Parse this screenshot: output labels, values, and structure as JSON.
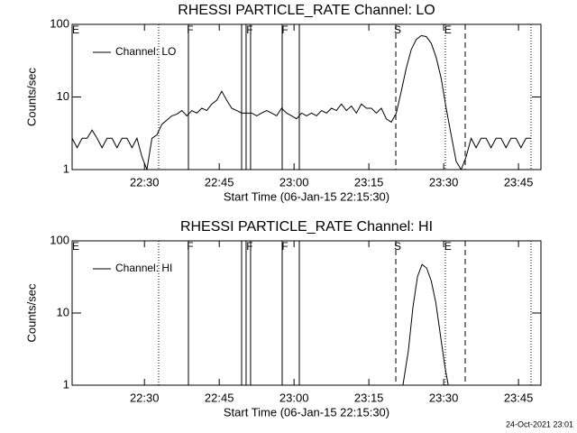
{
  "chart_data": [
    {
      "type": "line",
      "title": "RHESSI PARTICLE_RATE Channel: LO",
      "xlabel": "Start Time (06-Jan-15 22:15:30)",
      "ylabel": "Counts/sec",
      "log_y": true,
      "legend": "upper left",
      "xlim": [
        0,
        5640
      ],
      "xticks": [
        {
          "value": 870,
          "label": "22:30"
        },
        {
          "value": 1770,
          "label": "22:45"
        },
        {
          "value": 2670,
          "label": "23:00"
        },
        {
          "value": 3570,
          "label": "23:15"
        },
        {
          "value": 4470,
          "label": "23:30"
        },
        {
          "value": 5370,
          "label": "23:45"
        }
      ],
      "ylim": [
        1,
        100
      ],
      "yticks": [
        1,
        10,
        100
      ],
      "x": [
        0,
        60,
        120,
        180,
        240,
        300,
        360,
        420,
        480,
        540,
        600,
        660,
        720,
        780,
        840,
        900,
        960,
        1020,
        1080,
        1140,
        1200,
        1260,
        1320,
        1380,
        1440,
        1500,
        1560,
        1620,
        1680,
        1740,
        1800,
        1860,
        1920,
        1980,
        2040,
        2100,
        2160,
        2220,
        2280,
        2340,
        2400,
        2460,
        2520,
        2580,
        2640,
        2700,
        2760,
        2820,
        2880,
        2940,
        3000,
        3060,
        3120,
        3180,
        3240,
        3300,
        3360,
        3420,
        3480,
        3540,
        3600,
        3660,
        3720,
        3780,
        3840,
        3900,
        3960,
        4020,
        4080,
        4140,
        4200,
        4260,
        4320,
        4380,
        4440,
        4500,
        4560,
        4620,
        4680,
        4740,
        4800,
        4860,
        4920,
        4980,
        5040,
        5100,
        5160,
        5220,
        5280,
        5340,
        5400,
        5460,
        5520
      ],
      "series": [
        {
          "name": "Channel: LO",
          "color": "#000000",
          "values": [
            2.7,
            2,
            2.7,
            2.7,
            3.5,
            2.7,
            2,
            2.7,
            2.7,
            2,
            2.7,
            2.7,
            2,
            2.7,
            1.5,
            1,
            2.7,
            3,
            4.2,
            4.8,
            5.5,
            5.8,
            6.5,
            5.5,
            6.5,
            6,
            7,
            6.5,
            8,
            9,
            12,
            9,
            7,
            6.5,
            6,
            6,
            6,
            5.5,
            6,
            6.5,
            6,
            5.5,
            7,
            6,
            5.5,
            5,
            6,
            5.5,
            6,
            5.5,
            6.5,
            6,
            7,
            6.5,
            8,
            6.5,
            7.5,
            6,
            8,
            7,
            7,
            6,
            7,
            5,
            4.5,
            6,
            12,
            25,
            45,
            62,
            70,
            68,
            55,
            35,
            18,
            7,
            3,
            1.3,
            1,
            1.5,
            2.7,
            2,
            2.7,
            2.7,
            2,
            2.7,
            2.7,
            2,
            2.7,
            2.7,
            2,
            2.7,
            2.7
          ]
        }
      ],
      "markers": [
        {
          "x": 1041,
          "style": "dotted"
        },
        {
          "x": 1399,
          "style": "solid"
        },
        {
          "x": 2039,
          "style": "solid"
        },
        {
          "x": 2093,
          "style": "solid"
        },
        {
          "x": 2147,
          "style": "solid"
        },
        {
          "x": 2527,
          "style": "solid"
        },
        {
          "x": 2733,
          "style": "solid"
        },
        {
          "x": 3894,
          "style": "dashed"
        },
        {
          "x": 4490,
          "style": "dotted"
        },
        {
          "x": 4729,
          "style": "dashed"
        },
        {
          "x": 5520,
          "style": "dotted"
        }
      ],
      "flags": [
        {
          "label": "E",
          "x": 43
        },
        {
          "label": "F",
          "x": 1420
        },
        {
          "label": "F",
          "x": 2136
        },
        {
          "label": "F",
          "x": 2560
        },
        {
          "label": "S",
          "x": 3916
        },
        {
          "label": "E",
          "x": 4522
        }
      ]
    },
    {
      "type": "line",
      "title": "RHESSI PARTICLE_RATE Channel: HI",
      "xlabel": "Start Time (06-Jan-15 22:15:30)",
      "ylabel": "Counts/sec",
      "log_y": true,
      "legend": "upper left",
      "xlim": [
        0,
        5640
      ],
      "xticks": [
        {
          "value": 870,
          "label": "22:30"
        },
        {
          "value": 1770,
          "label": "22:45"
        },
        {
          "value": 2670,
          "label": "23:00"
        },
        {
          "value": 3570,
          "label": "23:15"
        },
        {
          "value": 4470,
          "label": "23:30"
        },
        {
          "value": 5370,
          "label": "23:45"
        }
      ],
      "ylim": [
        1,
        100
      ],
      "yticks": [
        1,
        10,
        100
      ],
      "x": [
        3980,
        4045,
        4100,
        4155,
        4210,
        4265,
        4320,
        4375,
        4430,
        4485,
        4525
      ],
      "series": [
        {
          "name": "Channel: HI",
          "color": "#000000",
          "values": [
            1,
            3,
            12,
            32,
            47,
            42,
            28,
            14,
            5,
            1.8,
            1
          ]
        }
      ],
      "markers": [
        {
          "x": 1041,
          "style": "dotted"
        },
        {
          "x": 1399,
          "style": "solid"
        },
        {
          "x": 2039,
          "style": "solid"
        },
        {
          "x": 2093,
          "style": "solid"
        },
        {
          "x": 2147,
          "style": "solid"
        },
        {
          "x": 2527,
          "style": "solid"
        },
        {
          "x": 2733,
          "style": "solid"
        },
        {
          "x": 3894,
          "style": "dashed"
        },
        {
          "x": 4490,
          "style": "dotted"
        },
        {
          "x": 4729,
          "style": "dashed"
        },
        {
          "x": 5520,
          "style": "dotted"
        }
      ],
      "flags": [
        {
          "label": "E",
          "x": 43
        },
        {
          "label": "F",
          "x": 1420
        },
        {
          "label": "F",
          "x": 2136
        },
        {
          "label": "F",
          "x": 2560
        },
        {
          "label": "S",
          "x": 3916
        },
        {
          "label": "E",
          "x": 4522
        }
      ]
    }
  ],
  "footer": "24-Oct-2021 23:01"
}
